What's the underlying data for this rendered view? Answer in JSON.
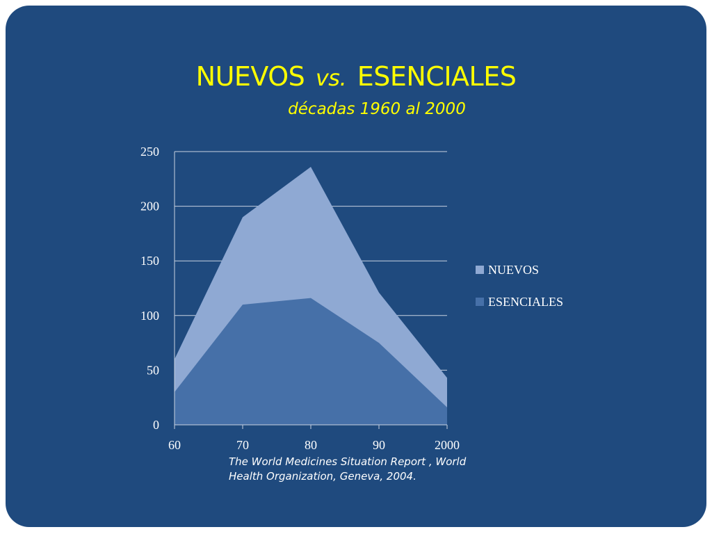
{
  "slide": {
    "title_left": "NUEVOS",
    "title_vs": "vs.",
    "title_right": "ESENCIALES",
    "subtitle": "décadas 1960 al 2000",
    "source_line1": "The World Medicines Situation Report , World",
    "source_line2": "Health Organization, Geneva, 2004."
  },
  "colors": {
    "background": "#1f4a7e",
    "title": "#ffff00",
    "nuevos": "#8fa9d3",
    "esenciales": "#4670a8",
    "gridline": "#c8d2e0"
  },
  "chart_data": {
    "type": "area",
    "categories": [
      "60",
      "70",
      "80",
      "90",
      "2000"
    ],
    "series": [
      {
        "name": "NUEVOS",
        "values": [
          60,
          190,
          236,
          121,
          43
        ]
      },
      {
        "name": "ESENCIALES",
        "values": [
          30,
          110,
          116,
          75,
          16
        ]
      }
    ],
    "yticks": [
      0,
      50,
      100,
      150,
      200,
      250
    ],
    "ylim": [
      0,
      250
    ],
    "grid": true,
    "legend_position": "right"
  }
}
